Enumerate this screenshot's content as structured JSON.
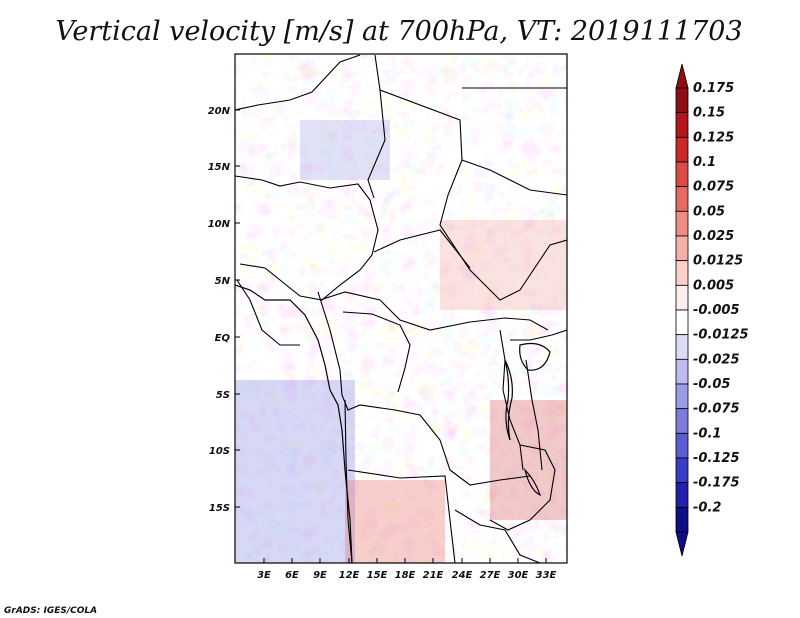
{
  "title": "Vertical velocity [m/s] at 700hPa, VT: 2019111703",
  "credit": "GrADS: IGES/COLA",
  "lat_labels": [
    "20N",
    "15N",
    "10N",
    "5N",
    "EQ",
    "5S",
    "10S",
    "15S"
  ],
  "lon_labels": [
    "3E",
    "6E",
    "9E",
    "12E",
    "15E",
    "18E",
    "21E",
    "24E",
    "27E",
    "30E",
    "33E"
  ],
  "colorbar": {
    "labels": [
      "0.175",
      "0.15",
      "0.125",
      "0.1",
      "0.075",
      "0.05",
      "0.025",
      "0.0125",
      "0.005",
      "-0.005",
      "-0.0125",
      "-0.025",
      "-0.05",
      "-0.075",
      "-0.1",
      "-0.125",
      "-0.175",
      "-0.2"
    ],
    "colors": [
      "#8e0e14",
      "#b3161c",
      "#cb2a2a",
      "#db4a46",
      "#e66a62",
      "#ef8c84",
      "#f5b0a8",
      "#f9d0ca",
      "#fceeeb",
      "#ffffff",
      "#dcdcf6",
      "#bcbcef",
      "#9c9ce6",
      "#7c7cdc",
      "#5c5cd2",
      "#3c3cc4",
      "#2020aa",
      "#0e0e86"
    ]
  }
}
